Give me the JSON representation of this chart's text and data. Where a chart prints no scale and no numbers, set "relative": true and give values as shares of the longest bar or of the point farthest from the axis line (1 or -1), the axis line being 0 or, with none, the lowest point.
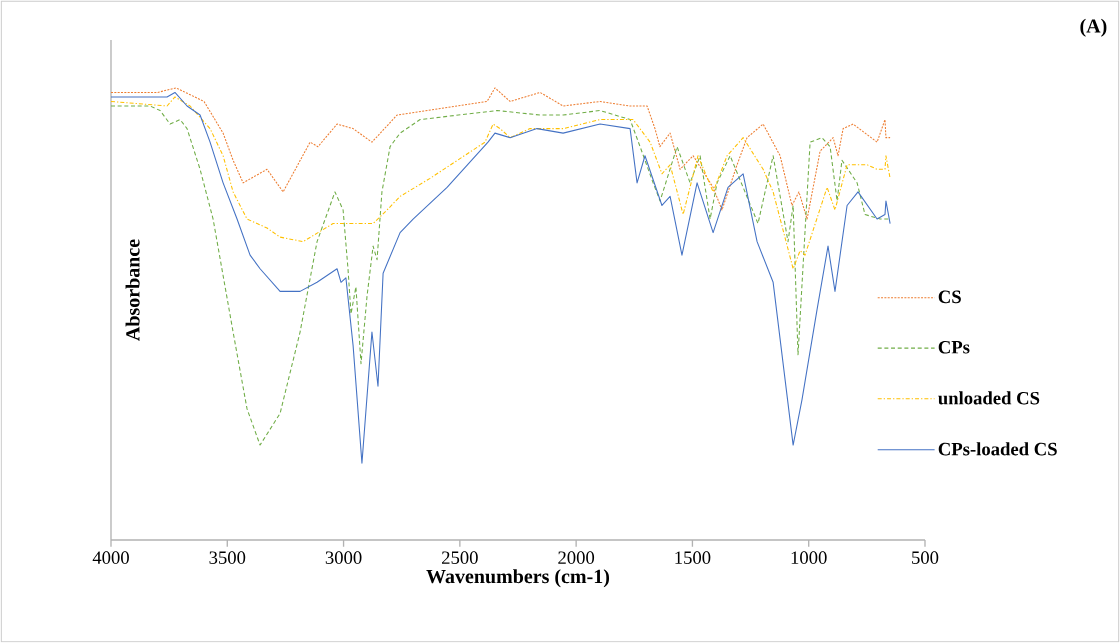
{
  "chart_data": {
    "type": "line",
    "title": "(A)",
    "xlabel": "Wavenumbers (cm-1)",
    "ylabel": "Absorbance",
    "relative": true,
    "xlim": [
      4000,
      500
    ],
    "xticks": [
      4000,
      3500,
      3000,
      2500,
      2000,
      1500,
      1000,
      500
    ],
    "tick_labels": "x",
    "grid": false,
    "legend": "right",
    "marker": "none",
    "series": [
      {
        "name": "CS",
        "color": "#ed7d31",
        "line_style": "dotted",
        "x": [
          4000,
          3800,
          3720,
          3600,
          3518,
          3475,
          3432,
          3329,
          3260,
          3144,
          3110,
          3028,
          2959,
          2878,
          2770,
          2383,
          2349,
          2284,
          2155,
          2056,
          1897,
          1768,
          1695,
          1661,
          1640,
          1596,
          1553,
          1497,
          1411,
          1373,
          1308,
          1265,
          1196,
          1123,
          1072,
          1042,
          1007,
          951,
          895,
          874,
          852,
          809,
          706,
          672,
          668,
          650
        ],
        "values": [
          0.99,
          0.99,
          1.0,
          0.97,
          0.9,
          0.84,
          0.79,
          0.82,
          0.77,
          0.88,
          0.87,
          0.92,
          0.91,
          0.88,
          0.94,
          0.97,
          1.0,
          0.97,
          0.99,
          0.96,
          0.97,
          0.96,
          0.96,
          0.91,
          0.87,
          0.9,
          0.82,
          0.85,
          0.78,
          0.73,
          0.83,
          0.89,
          0.92,
          0.85,
          0.74,
          0.77,
          0.71,
          0.86,
          0.89,
          0.85,
          0.91,
          0.92,
          0.88,
          0.93,
          0.89,
          0.89
        ]
      },
      {
        "name": "CPs",
        "color": "#70ad47",
        "line_style": "dashed",
        "x": [
          4000,
          3832,
          3789,
          3746,
          3703,
          3673,
          3617,
          3561,
          3475,
          3415,
          3359,
          3273,
          3187,
          3114,
          3037,
          3002,
          2981,
          2968,
          2947,
          2925,
          2899,
          2873,
          2856,
          2835,
          2800,
          2757,
          2671,
          2340,
          2155,
          2056,
          1897,
          1768,
          1725,
          1669,
          1639,
          1566,
          1510,
          1467,
          1424,
          1394,
          1338,
          1218,
          1153,
          1089,
          1067,
          1046,
          994,
          943,
          908,
          878,
          857,
          792,
          758,
          693,
          650
        ],
        "values": [
          0.96,
          0.96,
          0.95,
          0.92,
          0.93,
          0.91,
          0.82,
          0.71,
          0.46,
          0.29,
          0.21,
          0.28,
          0.46,
          0.66,
          0.77,
          0.73,
          0.6,
          0.5,
          0.56,
          0.39,
          0.54,
          0.65,
          0.62,
          0.77,
          0.87,
          0.9,
          0.93,
          0.95,
          0.94,
          0.94,
          0.95,
          0.93,
          0.87,
          0.79,
          0.75,
          0.87,
          0.79,
          0.85,
          0.71,
          0.79,
          0.85,
          0.7,
          0.85,
          0.66,
          0.74,
          0.41,
          0.88,
          0.89,
          0.87,
          0.75,
          0.84,
          0.79,
          0.72,
          0.71,
          0.71
        ]
      },
      {
        "name": "unloaded CS",
        "color": "#ffc000",
        "line_style": "dashdot",
        "x": [
          4000,
          3759,
          3725,
          3660,
          3574,
          3518,
          3475,
          3415,
          3329,
          3273,
          3174,
          3045,
          2929,
          2873,
          2813,
          2757,
          2628,
          2392,
          2357,
          2327,
          2284,
          2198,
          2056,
          1897,
          1768,
          1755,
          1682,
          1631,
          1596,
          1540,
          1476,
          1411,
          1351,
          1282,
          1196,
          1153,
          1067,
          1037,
          1016,
          921,
          887,
          835,
          749,
          706,
          672,
          668,
          650
        ],
        "values": [
          0.97,
          0.96,
          0.98,
          0.96,
          0.91,
          0.85,
          0.77,
          0.71,
          0.69,
          0.67,
          0.66,
          0.7,
          0.7,
          0.7,
          0.73,
          0.76,
          0.8,
          0.88,
          0.92,
          0.91,
          0.89,
          0.91,
          0.91,
          0.93,
          0.93,
          0.93,
          0.88,
          0.81,
          0.83,
          0.72,
          0.85,
          0.77,
          0.85,
          0.89,
          0.82,
          0.77,
          0.6,
          0.64,
          0.63,
          0.78,
          0.73,
          0.83,
          0.83,
          0.82,
          0.82,
          0.85,
          0.8
        ]
      },
      {
        "name": "CPs-loaded CS",
        "color": "#4472c4",
        "line_style": "solid",
        "x": [
          4000,
          3759,
          3725,
          3673,
          3617,
          3574,
          3518,
          3458,
          3402,
          3359,
          3273,
          3187,
          3114,
          3028,
          3011,
          2990,
          2959,
          2921,
          2878,
          2852,
          2830,
          2757,
          2701,
          2555,
          2379,
          2349,
          2284,
          2168,
          2056,
          1897,
          1768,
          1738,
          1704,
          1631,
          1596,
          1545,
          1480,
          1411,
          1347,
          1282,
          1222,
          1153,
          1067,
          1029,
          964,
          917,
          887,
          835,
          788,
          706,
          672,
          668,
          650
        ],
        "values": [
          0.98,
          0.98,
          0.99,
          0.96,
          0.94,
          0.88,
          0.79,
          0.71,
          0.63,
          0.6,
          0.55,
          0.55,
          0.57,
          0.6,
          0.57,
          0.58,
          0.43,
          0.17,
          0.46,
          0.34,
          0.59,
          0.68,
          0.71,
          0.78,
          0.88,
          0.9,
          0.89,
          0.91,
          0.9,
          0.92,
          0.91,
          0.79,
          0.85,
          0.74,
          0.76,
          0.63,
          0.79,
          0.68,
          0.78,
          0.81,
          0.66,
          0.57,
          0.21,
          0.31,
          0.51,
          0.65,
          0.55,
          0.74,
          0.77,
          0.71,
          0.72,
          0.75,
          0.7
        ]
      }
    ]
  }
}
